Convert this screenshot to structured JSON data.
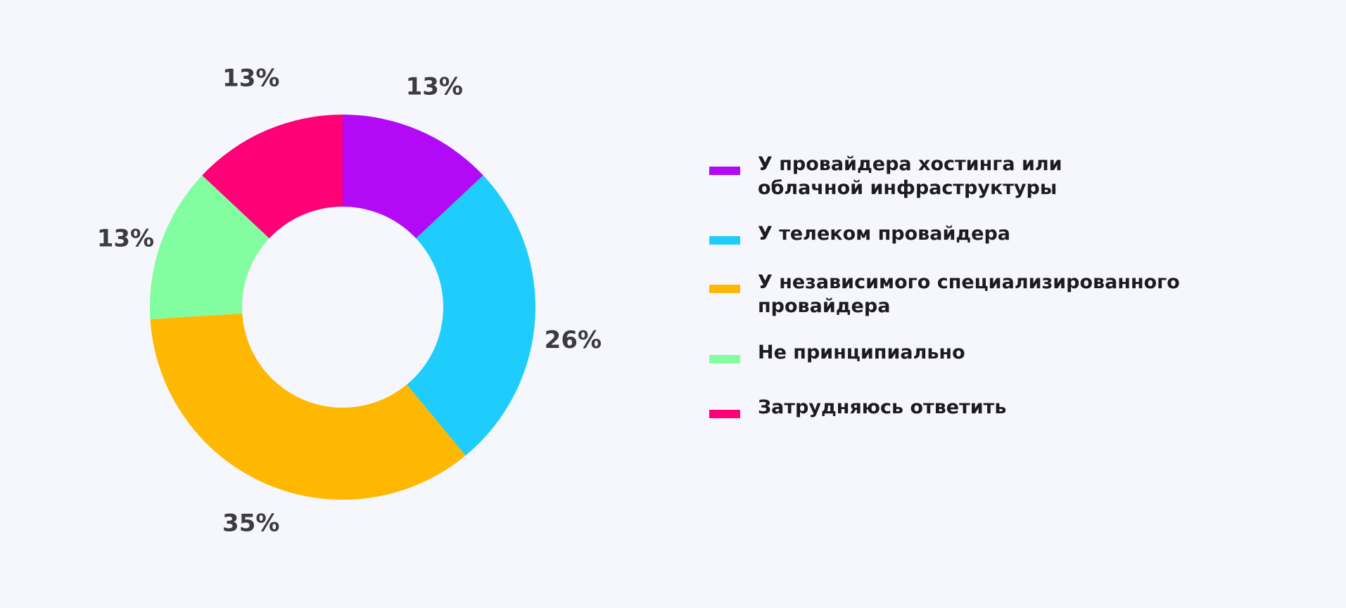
{
  "chart_data": {
    "type": "pie",
    "variant": "donut",
    "series": [
      {
        "name": "У провайдера хостинга или\nоблачной инфраструктуры",
        "value": 13,
        "label": "13%",
        "color": "#b20af7"
      },
      {
        "name": "У телеком провайдера",
        "value": 26,
        "label": "26%",
        "color": "#1ecdfc"
      },
      {
        "name": "У независимого специализированного\nпровайдера",
        "value": 35,
        "label": "35%",
        "color": "#ffb801"
      },
      {
        "name": "Не принципиально",
        "value": 13,
        "label": "13%",
        "color": "#82fd9f"
      },
      {
        "name": "Затрудняюсь ответить",
        "value": 13,
        "label": "13%",
        "color": "#ff0077"
      }
    ],
    "legend_position": "right"
  }
}
